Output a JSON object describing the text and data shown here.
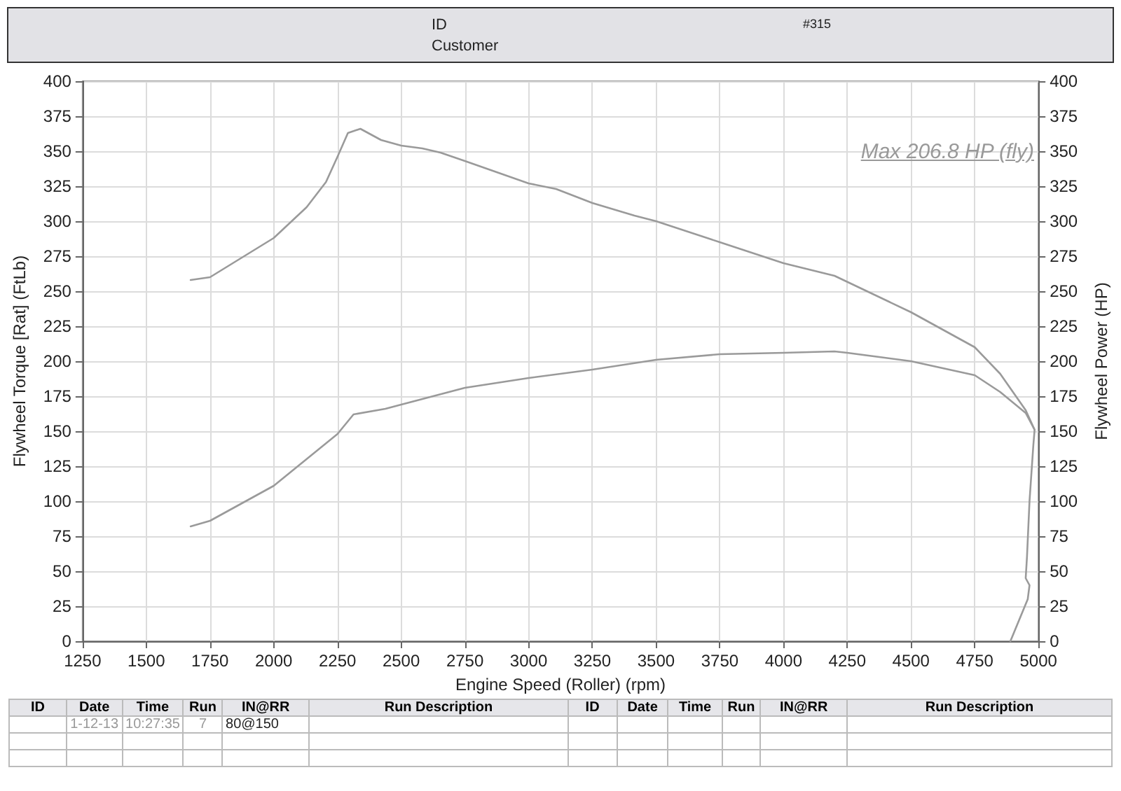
{
  "chart_data": {
    "type": "line",
    "xlabel": "Engine Speed (Roller) (rpm)",
    "ylabel": "Flywheel Torque [Rat] (FtLb)",
    "y2label": "Flywheel Power (HP)",
    "xlim": [
      1250,
      5000
    ],
    "xticks": [
      1250,
      1500,
      1750,
      2000,
      2250,
      2500,
      2750,
      3000,
      3250,
      3500,
      3750,
      4000,
      4250,
      4500,
      4750,
      5000
    ],
    "ylim": [
      0,
      400
    ],
    "yticks": [
      0,
      25,
      50,
      75,
      100,
      125,
      150,
      175,
      200,
      225,
      250,
      275,
      300,
      325,
      350,
      375,
      400
    ],
    "y2lim": [
      0,
      400
    ],
    "y2ticks": [
      0,
      25,
      50,
      75,
      100,
      125,
      150,
      175,
      200,
      225,
      250,
      275,
      300,
      325,
      350,
      375,
      400
    ],
    "grid": true,
    "marker": "none",
    "line_style": "solid",
    "series": [
      {
        "color": "#9a9a9a",
        "x": [
          1674,
          1750,
          2000,
          2129,
          2205,
          2250,
          2291,
          2340,
          2421,
          2500,
          2583,
          2654,
          2750,
          2875,
          3000,
          3108,
          3250,
          3415,
          3500,
          3750,
          4000,
          4200,
          4500,
          4750,
          4850,
          4900,
          4950,
          4985
        ],
        "values": [
          258,
          260,
          288,
          310,
          328,
          346,
          363,
          366,
          358,
          354,
          352,
          349,
          343,
          335,
          327,
          323,
          313,
          304,
          300,
          285,
          270,
          261,
          235,
          210,
          191,
          178,
          165,
          151
        ]
      },
      {
        "color": "#9a9a9a",
        "x": [
          1674,
          1750,
          2000,
          2250,
          2313,
          2438,
          2500,
          2750,
          3000,
          3250,
          3500,
          3750,
          4000,
          4200,
          4250,
          4500,
          4750,
          4850,
          4950,
          4985,
          4980,
          4965,
          4955,
          4950,
          4965,
          4958,
          4890
        ],
        "values": [
          82,
          86,
          111,
          148,
          162,
          166,
          169,
          181,
          188,
          194,
          201,
          205,
          206,
          207,
          206,
          200,
          190,
          178,
          163,
          151,
          140,
          100,
          60,
          45,
          40,
          30,
          0
        ]
      }
    ],
    "annotations": [
      "ID",
      "Customer",
      "#315",
      "Max 206.8 HP (fly)",
      "ID",
      "Date",
      "Time",
      "Run",
      "IN@RR",
      "Run Description",
      "ID",
      "Date",
      "Time",
      "Run",
      "IN@RR",
      "Run Description",
      "1-12-13",
      "10:27:35",
      "7",
      "80@150"
    ]
  }
}
